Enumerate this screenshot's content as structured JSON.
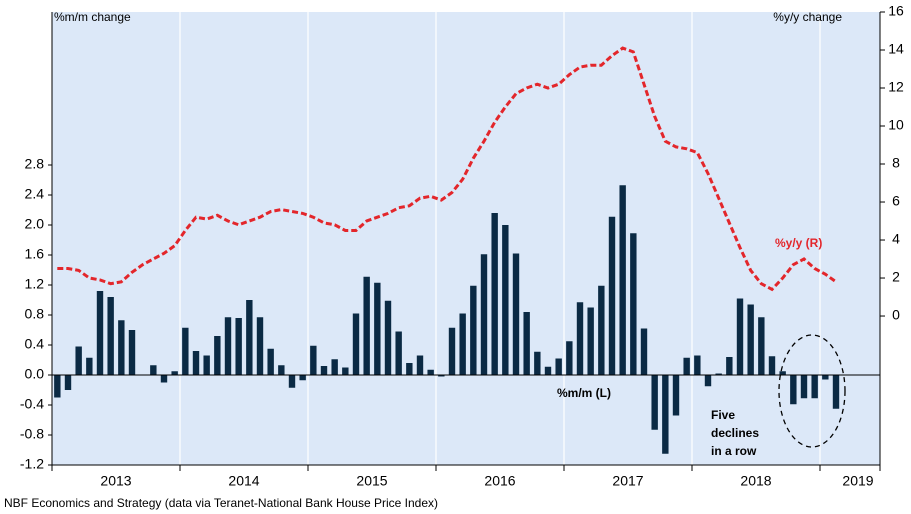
{
  "chart_data": {
    "type": "bar",
    "left_axis_label": "%m/m change",
    "right_axis_label": "%y/y change",
    "note": [
      "Five",
      "declines",
      "in a row"
    ],
    "source": "NBF Economics and Strategy (data via Teranet-National Bank House Price Index)",
    "years": [
      "2013",
      "2014",
      "2015",
      "2016",
      "2017",
      "2018",
      "2019"
    ],
    "categories": [
      null,
      null,
      null,
      null,
      null,
      null,
      null,
      null,
      null,
      null,
      null,
      null,
      null,
      null,
      null,
      null,
      null,
      null,
      null,
      null,
      null,
      null,
      null,
      null,
      null,
      null,
      null,
      null,
      null,
      null,
      null,
      null,
      null,
      null,
      null,
      null,
      null,
      null,
      null,
      null,
      null,
      null,
      null,
      null,
      null,
      null,
      null,
      null,
      null,
      null,
      null,
      null,
      null,
      null,
      null,
      null,
      null,
      null,
      null,
      null,
      null,
      null,
      null,
      null,
      null,
      null,
      null,
      null,
      null,
      null,
      null,
      null,
      null,
      null
    ],
    "ylim": [
      -1.2,
      4.84
    ],
    "yticks": [
      -1.2,
      -0.8,
      -0.4,
      {
        "value": 0,
        "label": "0.0"
      },
      0.4,
      0.8,
      1.2,
      1.6,
      {
        "value": 2,
        "label": "2.0"
      },
      2.4,
      2.8
    ],
    "y2lim": [
      -7.84,
      16
    ],
    "y2ticks": [
      0,
      2,
      4,
      6,
      8,
      10,
      12,
      14,
      16
    ],
    "grid": true,
    "series": [
      {
        "name": "%m/m (L)",
        "type": "bar",
        "color": "#0b2a44",
        "values": [
          -0.3,
          -0.2,
          0.38,
          0.23,
          1.12,
          1.04,
          0.73,
          0.6,
          0,
          0.13,
          -0.1,
          0.05,
          0.63,
          0.32,
          0.26,
          0.52,
          0.77,
          0.76,
          1.0,
          0.77,
          0.35,
          0.13,
          -0.17,
          -0.07,
          0.39,
          0.12,
          0.21,
          0.1,
          0.82,
          1.31,
          1.23,
          0.99,
          0.58,
          0.16,
          0.26,
          0.07,
          -0.02,
          0.63,
          0.82,
          1.19,
          1.61,
          2.16,
          2.0,
          1.62,
          0.84,
          0.31,
          0.11,
          0.22,
          0.45,
          0.97,
          0.9,
          1.19,
          2.11,
          2.53,
          1.89,
          0.62,
          -0.73,
          -1.05,
          -0.54,
          0.23,
          0.26,
          -0.15,
          0.02,
          0.24,
          1.02,
          0.94,
          0.77,
          0.25,
          0.05,
          -0.39,
          -0.31,
          -0.31,
          -0.06,
          -0.45
        ]
      },
      {
        "name": "%y/y (R)",
        "type": "line",
        "axis": "y2",
        "color": "#e3262b",
        "dashed": true,
        "values": [
          2.5,
          2.5,
          2.4,
          2.0,
          1.9,
          1.7,
          1.8,
          2.3,
          2.7,
          3.0,
          3.3,
          3.7,
          4.5,
          5.2,
          5.1,
          5.3,
          5.0,
          4.8,
          5.0,
          5.2,
          5.5,
          5.6,
          5.5,
          5.4,
          5.2,
          4.9,
          4.8,
          4.5,
          4.5,
          5.0,
          5.2,
          5.4,
          5.7,
          5.8,
          6.2,
          6.3,
          6.1,
          6.5,
          7.2,
          8.3,
          9.2,
          10.2,
          11.0,
          11.7,
          12.0,
          12.2,
          12.0,
          12.2,
          12.7,
          13.1,
          13.2,
          13.2,
          13.7,
          14.1,
          13.9,
          12.2,
          10.5,
          9.2,
          8.9,
          8.8,
          8.6,
          7.5,
          6.2,
          4.9,
          3.6,
          2.4,
          1.7,
          1.4,
          2.0,
          2.7,
          3.0,
          2.5,
          2.2,
          1.8
        ]
      }
    ]
  }
}
